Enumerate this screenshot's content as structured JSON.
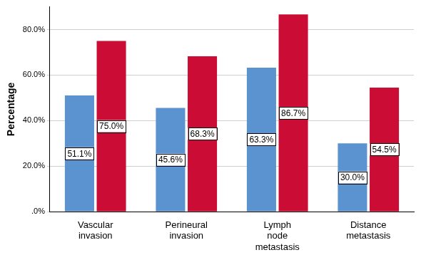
{
  "chart_data": {
    "type": "bar",
    "y_label": "Percentage",
    "categories": [
      "Vascular invasion",
      "Perineural invasion",
      "Lymph node metastasis",
      "Distance metastasis"
    ],
    "series": [
      {
        "color": "#5b93d0",
        "values": [
          51.1,
          45.6,
          63.3,
          30.0
        ],
        "value_labels": [
          "51.1%",
          "45.6%",
          "63.3%",
          "30.0%"
        ]
      },
      {
        "color": "#cb0d36",
        "values": [
          75.0,
          68.3,
          86.7,
          54.5
        ],
        "value_labels": [
          "75.0%",
          "68.3%",
          "86.7%",
          "54.5%"
        ]
      }
    ],
    "ylim": [
      0,
      90
    ],
    "yticks": [
      {
        "value": 0,
        "label": ".0%"
      },
      {
        "value": 20,
        "label": "20.0%"
      },
      {
        "value": 40,
        "label": "40.0%"
      },
      {
        "value": 60,
        "label": "60.0%"
      },
      {
        "value": 80,
        "label": "80.0%"
      }
    ],
    "grid": true,
    "data_labels": true
  }
}
